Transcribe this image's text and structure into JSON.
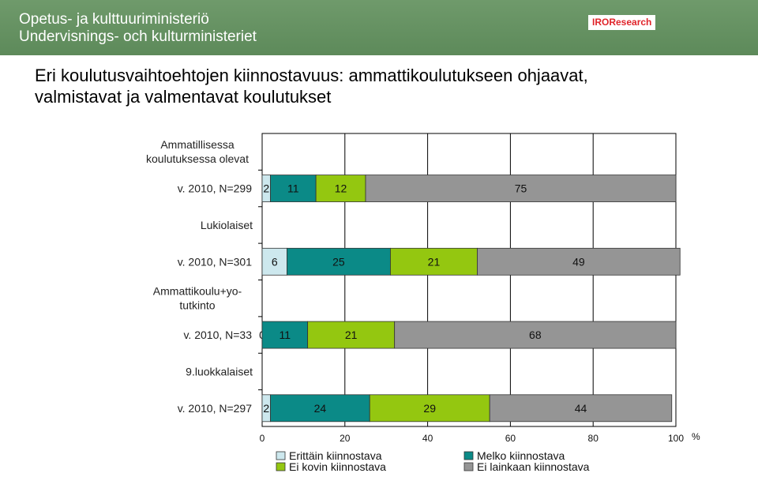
{
  "header": {
    "ministry_fi": "Opetus- ja kulttuuriministeriö",
    "ministry_sv": "Undervisnings- och kulturministeriet",
    "logo": "IROResearch"
  },
  "title_lines": [
    "Eri koulutusvaihtoehtojen kiinnostavuus: ammattikoulutukseen ohjaavat,",
    "valmistavat ja valmentavat koulutukset"
  ],
  "colors": {
    "Erittäin kiinnostava": "#cde8ee",
    "Melko kiinnostava": "#0b8a87",
    "Ei kovin kiinnostava": "#94c710",
    "Ei lainkaan kiinnostava": "#959595"
  },
  "chart_data": {
    "type": "bar",
    "orientation": "horizontal",
    "stacked": true,
    "xlim": [
      0,
      100
    ],
    "xticks": [
      0,
      20,
      40,
      60,
      80,
      100
    ],
    "xunit": "%",
    "groups": [
      {
        "heading": [
          "Ammatillisessa",
          "koulutuksessa olevat"
        ],
        "label": "v. 2010, N=299",
        "values": [
          2,
          11,
          12,
          75
        ]
      },
      {
        "heading": [
          "Lukiolaiset"
        ],
        "label": "v. 2010, N=301",
        "values": [
          6,
          25,
          21,
          49
        ]
      },
      {
        "heading": [
          "Ammattikoulu+yo-",
          "tutkinto"
        ],
        "label": "v. 2010, N=33",
        "values": [
          0,
          11,
          21,
          68
        ]
      },
      {
        "heading": [
          "9.luokkalaiset"
        ],
        "label": "v. 2010, N=297",
        "values": [
          2,
          24,
          29,
          44
        ]
      }
    ],
    "series": [
      {
        "name": "Erittäin kiinnostava"
      },
      {
        "name": "Melko kiinnostava"
      },
      {
        "name": "Ei kovin kiinnostava"
      },
      {
        "name": "Ei lainkaan kiinnostava"
      }
    ],
    "grid": true,
    "legend": "bottom"
  }
}
